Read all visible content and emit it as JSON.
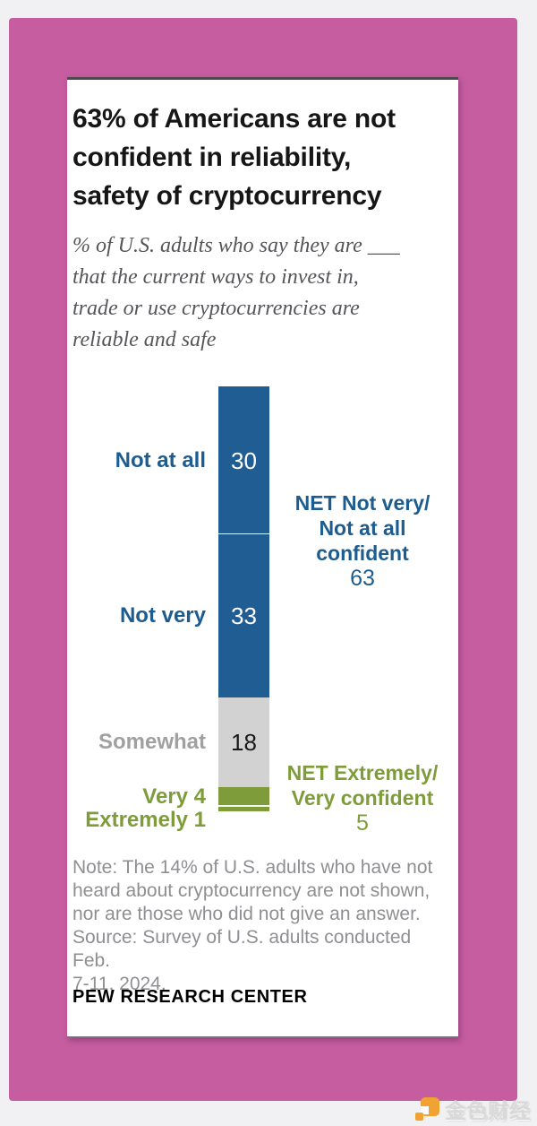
{
  "page": {
    "colors": {
      "backdrop_pink": "#c55da0",
      "page_background": "#f1f1f3",
      "watermark_orange": "#f0a233"
    },
    "watermark": {
      "text": "金色财经"
    }
  },
  "card": {
    "title_lines": [
      "63% of Americans are not",
      "confident in reliability,",
      "safety of cryptocurrency"
    ],
    "subtitle_lines": [
      "% of U.S. adults who say they are ___",
      "that the current ways to invest in,",
      "trade or use cryptocurrencies are",
      "reliable and safe"
    ],
    "note_lines": [
      "Note: The 14% of U.S. adults who have not",
      "heard about cryptocurrency are not shown,",
      "nor are those who did not give an answer.",
      "Source: Survey of U.S. adults conducted Feb.",
      "7-11, 2024."
    ],
    "footer": "PEW RESEARCH CENTER"
  },
  "chart_data": {
    "type": "bar",
    "subtype": "single-vertical-stacked-bar",
    "title": "63% of Americans are not confident in reliability, safety of cryptocurrency",
    "subtitle": "% of U.S. adults who say they are ___ that the current ways to invest in, trade or use cryptocurrencies are reliable and safe",
    "total_shown": 86,
    "segments": [
      {
        "label": "Not at all",
        "value": 30,
        "color": "#205d92",
        "label_color": "#1d5c8f",
        "value_in_bar": true,
        "value_color": "#ffffff"
      },
      {
        "label": "Not very",
        "value": 33,
        "color": "#205d92",
        "label_color": "#1d5c8f",
        "value_in_bar": true,
        "value_color": "#ffffff"
      },
      {
        "label": "Somewhat",
        "value": 18,
        "color": "#d2d2d2",
        "label_color": "#a0a0a0",
        "value_in_bar": true,
        "value_color": "#1a1a1a"
      },
      {
        "label": "Very",
        "value": 4,
        "color": "#7f9c3b",
        "label_color": "#7f9c3b",
        "value_in_bar": false
      },
      {
        "label": "Extremely",
        "value": 1,
        "color": "#7f9c3b",
        "label_color": "#7f9c3b",
        "value_in_bar": false
      }
    ],
    "dividers_after": [
      0,
      3
    ],
    "nets": [
      {
        "lines": [
          "NET Not very/",
          "Not at all",
          "confident"
        ],
        "value": "63",
        "color": "#1d5c8f"
      },
      {
        "lines": [
          "NET Extremely/",
          "Very confident"
        ],
        "value": "5",
        "color": "#7f9c3b"
      }
    ],
    "legend_position": "none",
    "grid": false
  }
}
